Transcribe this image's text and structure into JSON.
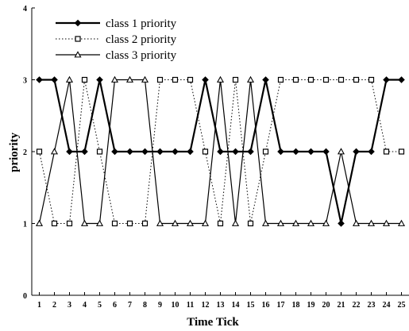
{
  "chart_data": {
    "type": "line",
    "title": "",
    "xlabel": "Time Tick",
    "ylabel": "priority",
    "x": [
      1,
      2,
      3,
      4,
      5,
      6,
      7,
      8,
      9,
      10,
      11,
      12,
      13,
      14,
      15,
      16,
      17,
      18,
      19,
      20,
      21,
      22,
      23,
      24,
      25
    ],
    "xlim": [
      0.5,
      25.5
    ],
    "ylim": [
      0,
      4
    ],
    "yticks": [
      0,
      1,
      2,
      3,
      4
    ],
    "grid": false,
    "legend_position": "top-left",
    "series": [
      {
        "name": "class 1 priority",
        "line_style": "solid-thick",
        "marker": "filled-diamond",
        "values": [
          3,
          3,
          2,
          2,
          3,
          2,
          2,
          2,
          2,
          2,
          2,
          3,
          2,
          2,
          2,
          3,
          2,
          2,
          2,
          2,
          1,
          2,
          2,
          3,
          3
        ]
      },
      {
        "name": "class 2 priority",
        "line_style": "dotted",
        "marker": "open-square",
        "values": [
          2,
          1,
          1,
          3,
          2,
          1,
          1,
          1,
          3,
          3,
          3,
          2,
          1,
          3,
          1,
          2,
          3,
          3,
          3,
          3,
          3,
          3,
          3,
          2,
          2
        ]
      },
      {
        "name": "class 3 priority",
        "line_style": "solid-thin",
        "marker": "open-triangle",
        "values": [
          1,
          2,
          3,
          1,
          1,
          3,
          3,
          3,
          1,
          1,
          1,
          1,
          3,
          1,
          3,
          1,
          1,
          1,
          1,
          1,
          2,
          1,
          1,
          1,
          1
        ]
      }
    ]
  }
}
